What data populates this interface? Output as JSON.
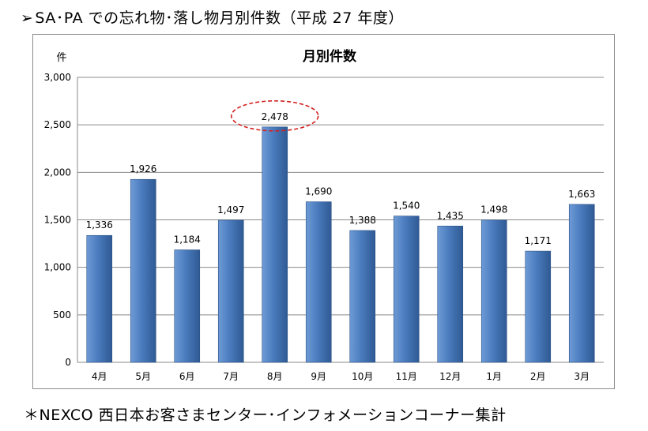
{
  "heading": {
    "marker": "➢",
    "text": "SA･PA での忘れ物･落し物月別件数（平成 27 年度）"
  },
  "chart_data": {
    "type": "bar",
    "title": "月別件数",
    "ylabel": "件",
    "xlabel": "",
    "categories": [
      "4月",
      "5月",
      "6月",
      "7月",
      "8月",
      "9月",
      "10月",
      "11月",
      "12月",
      "1月",
      "2月",
      "3月"
    ],
    "values": [
      1336,
      1926,
      1184,
      1497,
      2478,
      1690,
      1388,
      1540,
      1435,
      1498,
      1171,
      1663
    ],
    "value_labels": [
      "1,336",
      "1,926",
      "1,184",
      "1,497",
      "2,478",
      "1,690",
      "1,388",
      "1,540",
      "1,435",
      "1,498",
      "1,171",
      "1,663"
    ],
    "ylim": [
      0,
      3000
    ],
    "yticks": [
      0,
      500,
      1000,
      1500,
      2000,
      2500,
      3000
    ],
    "ytick_labels": [
      "0",
      "500",
      "1,000",
      "1,500",
      "2,000",
      "2,500",
      "3,000"
    ],
    "grid": true,
    "bar_color": "#4a7bbd",
    "highlight": {
      "category": "8月",
      "style": "red dashed ellipse",
      "color": "#d22020"
    }
  },
  "footnote": "＊NEXCO 西日本お客さまセンター･インフォメーションコーナー集計"
}
